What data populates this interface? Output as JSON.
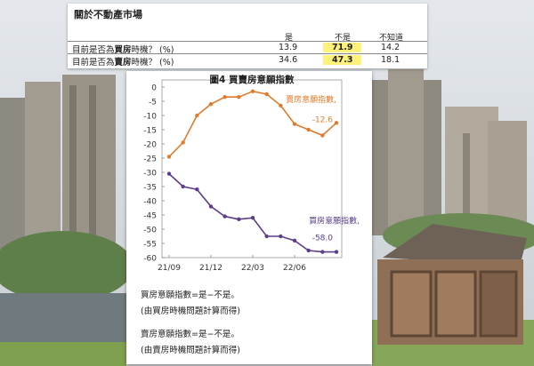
{
  "survey": {
    "title": "關於不動產市場",
    "columns": [
      "是",
      "不是",
      "不知道"
    ],
    "rows": [
      {
        "prefix": "目前是否為",
        "bold": "買房",
        "suffix": "時機？ (%)",
        "yes": "13.9",
        "no": "71.9",
        "unknown": "14.2"
      },
      {
        "prefix": "目前是否為",
        "bold": "賣房",
        "suffix": "時機？ (%)",
        "yes": "34.6",
        "no": "47.3",
        "unknown": "18.1"
      }
    ],
    "highlight_color": "#fff27a"
  },
  "chart_data": {
    "type": "line",
    "title": "圖4  買賣房意願指數",
    "xlabel": "",
    "ylabel": "",
    "x_ticks": [
      "21/09",
      "21/12",
      "22/03",
      "22/06"
    ],
    "ylim": [
      -60,
      0
    ],
    "y_ticks": [
      0,
      -5,
      -10,
      -15,
      -20,
      -25,
      -30,
      -35,
      -40,
      -45,
      -50,
      -55,
      -60
    ],
    "grid": false,
    "series": [
      {
        "name": "賣房意願指數",
        "color": "#e07b2a",
        "end_label": "-12.6",
        "values": [
          -24.5,
          -19.5,
          -10,
          -6,
          -3.5,
          -3.5,
          -1.5,
          -2.5,
          -6.5,
          -13,
          -15,
          -17,
          -12.6
        ]
      },
      {
        "name": "買房意願指數",
        "color": "#5c3d8a",
        "end_label": "-58.0",
        "values": [
          -30.5,
          -35,
          -36,
          -42,
          -45.5,
          -46.5,
          -46,
          -52.5,
          -52.5,
          -54,
          -57.5,
          -58,
          -58
        ]
      }
    ]
  },
  "notes": {
    "buy_formula": "買房意願指數=是−不是。",
    "buy_source": "(由買房時機問題計算而得)",
    "sell_formula": "賣房意願指數=是−不是。",
    "sell_source": "(由賣房時機問題計算而得)"
  }
}
